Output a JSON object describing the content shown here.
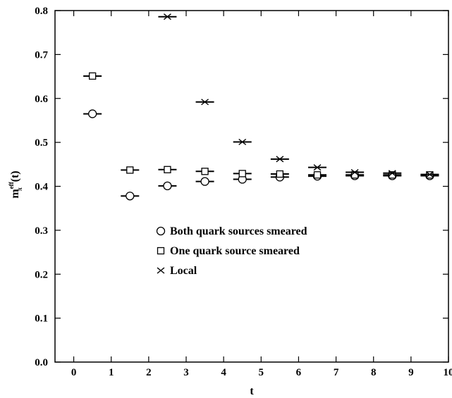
{
  "chart_data": {
    "type": "scatter",
    "xlabel": "t",
    "ylabel": {
      "base": "m",
      "sup": "eff",
      "sub": "π",
      "arg": " (t)"
    },
    "xlim": [
      -0.5,
      10
    ],
    "ylim": [
      0,
      0.8
    ],
    "xticks": [
      0,
      1,
      2,
      3,
      4,
      5,
      6,
      7,
      8,
      9,
      10
    ],
    "yticks": [
      0.0,
      0.1,
      0.2,
      0.3,
      0.4,
      0.5,
      0.6,
      0.7,
      0.8
    ],
    "ytick_labels": [
      "0.0",
      "0.1",
      "0.2",
      "0.3",
      "0.4",
      "0.5",
      "0.6",
      "0.7",
      "0.8"
    ],
    "grid": false,
    "legend_position": "center-left",
    "series": [
      {
        "name": "Both quark sources smeared",
        "marker": "circle",
        "x": [
          0.5,
          1.5,
          2.5,
          3.5,
          4.5,
          5.5,
          6.5,
          7.5,
          8.5,
          9.5
        ],
        "y": [
          0.565,
          0.378,
          0.401,
          0.411,
          0.416,
          0.421,
          0.423,
          0.424,
          0.424,
          0.424
        ]
      },
      {
        "name": "One quark source smeared",
        "marker": "square",
        "x": [
          0.5,
          1.5,
          2.5,
          3.5,
          4.5,
          5.5,
          6.5,
          7.5,
          8.5,
          9.5
        ],
        "y": [
          0.651,
          0.437,
          0.438,
          0.434,
          0.429,
          0.428,
          0.426,
          0.426,
          0.426,
          0.426
        ]
      },
      {
        "name": "Local",
        "marker": "cross",
        "x": [
          2.5,
          3.5,
          4.5,
          5.5,
          6.5,
          7.5,
          8.5,
          9.5
        ],
        "y": [
          0.786,
          0.592,
          0.501,
          0.462,
          0.443,
          0.432,
          0.43,
          0.427
        ]
      }
    ]
  }
}
